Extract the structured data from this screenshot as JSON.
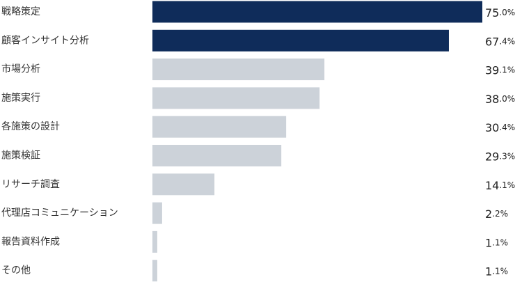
{
  "chart_data": {
    "type": "bar",
    "orientation": "horizontal",
    "categories": [
      "戦略策定",
      "顧客インサイト分析",
      "市場分析",
      "施策実行",
      "各施策の設計",
      "施策検証",
      "リサーチ調査",
      "代理店コミュニケーション",
      "報告資料作成",
      "その他"
    ],
    "values": [
      75.0,
      67.4,
      39.1,
      38.0,
      30.4,
      29.3,
      14.1,
      2.2,
      1.1,
      1.1
    ],
    "value_labels": [
      "75.0%",
      "67.4%",
      "39.1%",
      "38.0%",
      "30.4%",
      "29.3%",
      "14.1%",
      "2.2%",
      "1.1%",
      "1.1%"
    ],
    "xlim": [
      0,
      75.0
    ],
    "highlight_count": 2,
    "grid": false,
    "legend": "none",
    "title": "",
    "xlabel": "",
    "ylabel": ""
  },
  "colors": {
    "highlight": "#0f2c5a",
    "normal": "#ccd2d9",
    "label": "#333333",
    "value": "#222222"
  }
}
